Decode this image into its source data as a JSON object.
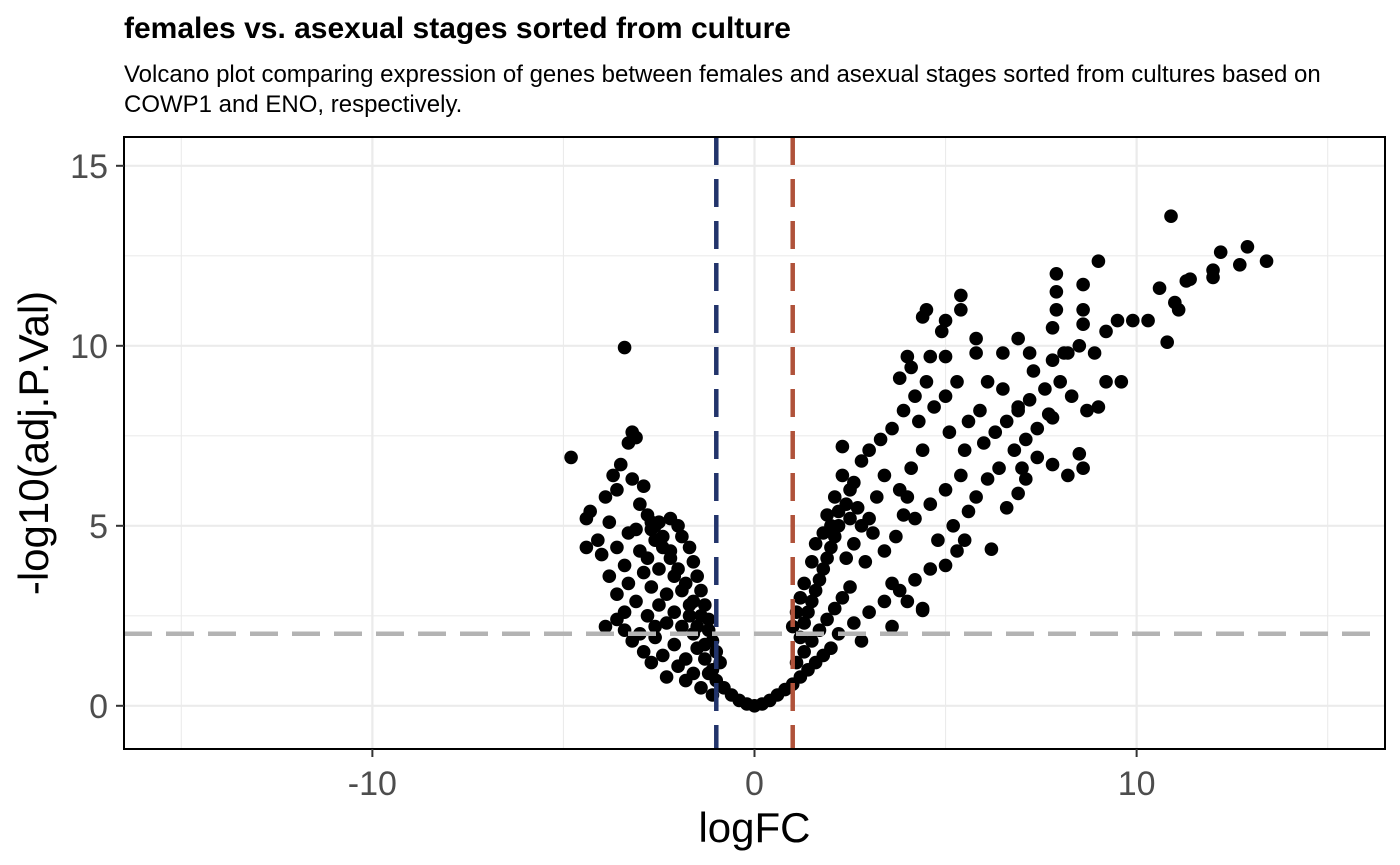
{
  "chart_data": {
    "type": "scatter",
    "title": "females vs. asexual stages sorted from culture",
    "subtitle": "Volcano plot comparing expression of genes between females and asexual stages sorted from cultures based on COWP1 and ENO, respectively.",
    "xlabel": "logFC",
    "ylabel": "-log10(adj.P.Val)",
    "xlim": [
      -16.5,
      16.5
    ],
    "ylim": [
      -1.2,
      15.8
    ],
    "x_ticks": [
      -10,
      0,
      10
    ],
    "x_tick_labels": [
      "-10",
      "0",
      "10"
    ],
    "y_ticks": [
      0,
      5,
      10,
      15
    ],
    "y_tick_labels": [
      "0",
      "5",
      "10",
      "15"
    ],
    "grid": true,
    "reference_lines": [
      {
        "orientation": "vertical",
        "value": -1,
        "color": "#22346b",
        "style": "dashed"
      },
      {
        "orientation": "vertical",
        "value": 1,
        "color": "#b0523a",
        "style": "dashed"
      },
      {
        "orientation": "horizontal",
        "value": 2,
        "color": "#b3b3b3",
        "style": "dashed"
      }
    ],
    "point_color": "#000000",
    "points": [
      [
        -4.8,
        6.9
      ],
      [
        -3.4,
        9.95
      ],
      [
        -3.2,
        7.6
      ],
      [
        -3.1,
        7.45
      ],
      [
        -3.3,
        7.3
      ],
      [
        -3.5,
        6.7
      ],
      [
        -3.7,
        6.4
      ],
      [
        -3.2,
        6.3
      ],
      [
        -3.6,
        6.0
      ],
      [
        -2.9,
        6.1
      ],
      [
        -3.0,
        5.6
      ],
      [
        -3.9,
        5.8
      ],
      [
        -4.3,
        5.4
      ],
      [
        -4.4,
        5.2
      ],
      [
        -3.8,
        5.1
      ],
      [
        -2.7,
        5.1
      ],
      [
        -3.1,
        4.9
      ],
      [
        -4.1,
        4.6
      ],
      [
        -4.4,
        4.4
      ],
      [
        -2.7,
        4.9
      ],
      [
        -3.3,
        4.8
      ],
      [
        -4.0,
        4.2
      ],
      [
        -3.6,
        4.4
      ],
      [
        -2.6,
        4.6
      ],
      [
        -3.0,
        4.3
      ],
      [
        -2.8,
        4.1
      ],
      [
        -2.4,
        4.4
      ],
      [
        -3.4,
        3.9
      ],
      [
        -3.8,
        3.6
      ],
      [
        -2.2,
        4.1
      ],
      [
        -2.9,
        3.7
      ],
      [
        -3.3,
        3.4
      ],
      [
        -2.5,
        3.8
      ],
      [
        -2.1,
        3.6
      ],
      [
        -3.6,
        3.1
      ],
      [
        -2.7,
        3.3
      ],
      [
        -2.3,
        3.1
      ],
      [
        -3.1,
        2.9
      ],
      [
        -1.9,
        3.2
      ],
      [
        -2.5,
        2.8
      ],
      [
        -3.4,
        2.6
      ],
      [
        -3.6,
        2.4
      ],
      [
        -2.1,
        2.6
      ],
      [
        -2.8,
        2.5
      ],
      [
        -1.7,
        2.8
      ],
      [
        -2.3,
        2.3
      ],
      [
        -3.2,
        1.8
      ],
      [
        -1.9,
        2.2
      ],
      [
        -2.6,
        1.9
      ],
      [
        -1.6,
        2.0
      ],
      [
        -2.1,
        1.7
      ],
      [
        -2.9,
        1.5
      ],
      [
        -1.5,
        1.6
      ],
      [
        -2.4,
        1.4
      ],
      [
        -1.8,
        1.3
      ],
      [
        -2.7,
        1.2
      ],
      [
        -1.3,
        1.3
      ],
      [
        -2.0,
        1.1
      ],
      [
        -1.6,
        0.9
      ],
      [
        -2.3,
        0.8
      ],
      [
        -1.2,
        0.9
      ],
      [
        -1.8,
        0.7
      ],
      [
        -1.0,
        0.7
      ],
      [
        -1.4,
        0.5
      ],
      [
        -0.8,
        0.5
      ],
      [
        -1.1,
        0.3
      ],
      [
        -0.6,
        0.3
      ],
      [
        -0.4,
        0.15
      ],
      [
        -0.2,
        0.05
      ],
      [
        0.0,
        0.0
      ],
      [
        0.2,
        0.05
      ],
      [
        0.4,
        0.15
      ],
      [
        0.6,
        0.3
      ],
      [
        0.8,
        0.45
      ],
      [
        1.0,
        0.6
      ],
      [
        1.2,
        0.8
      ],
      [
        1.4,
        1.0
      ],
      [
        1.6,
        1.2
      ],
      [
        1.8,
        1.4
      ],
      [
        2.0,
        1.6
      ],
      [
        1.1,
        1.2
      ],
      [
        1.3,
        1.5
      ],
      [
        1.5,
        1.8
      ],
      [
        1.7,
        2.1
      ],
      [
        1.9,
        2.4
      ],
      [
        2.1,
        2.7
      ],
      [
        2.3,
        3.0
      ],
      [
        2.5,
        3.3
      ],
      [
        2.2,
        2.0
      ],
      [
        2.6,
        2.3
      ],
      [
        3.0,
        2.6
      ],
      [
        3.4,
        2.9
      ],
      [
        3.8,
        3.2
      ],
      [
        4.2,
        3.5
      ],
      [
        4.6,
        3.8
      ],
      [
        4.4,
        2.7
      ],
      [
        3.6,
        2.2
      ],
      [
        2.8,
        1.8
      ],
      [
        1.4,
        2.6
      ],
      [
        1.6,
        3.2
      ],
      [
        1.8,
        3.8
      ],
      [
        2.0,
        4.4
      ],
      [
        2.2,
        5.0
      ],
      [
        2.4,
        5.6
      ],
      [
        2.6,
        6.2
      ],
      [
        2.8,
        6.8
      ],
      [
        2.3,
        7.2
      ],
      [
        3.0,
        7.1
      ],
      [
        3.3,
        7.4
      ],
      [
        3.6,
        7.7
      ],
      [
        3.0,
        5.2
      ],
      [
        3.2,
        5.8
      ],
      [
        3.4,
        6.4
      ],
      [
        3.8,
        6.0
      ],
      [
        4.1,
        6.6
      ],
      [
        4.4,
        7.1
      ],
      [
        4.2,
        5.2
      ],
      [
        4.6,
        5.6
      ],
      [
        5.0,
        6.0
      ],
      [
        5.4,
        6.4
      ],
      [
        4.8,
        4.6
      ],
      [
        5.2,
        5.0
      ],
      [
        5.6,
        5.4
      ],
      [
        5.3,
        4.3
      ],
      [
        5.0,
        3.9
      ],
      [
        5.5,
        4.6
      ],
      [
        6.2,
        4.35
      ],
      [
        5.8,
        5.8
      ],
      [
        6.1,
        6.3
      ],
      [
        6.4,
        6.6
      ],
      [
        3.9,
        8.2
      ],
      [
        4.2,
        8.6
      ],
      [
        4.5,
        9.0
      ],
      [
        4.1,
        9.4
      ],
      [
        3.8,
        9.1
      ],
      [
        4.3,
        7.9
      ],
      [
        4.7,
        8.3
      ],
      [
        5.0,
        8.6
      ],
      [
        5.3,
        9.0
      ],
      [
        5.1,
        7.6
      ],
      [
        5.6,
        7.9
      ],
      [
        5.9,
        8.2
      ],
      [
        5.5,
        7.1
      ],
      [
        6.0,
        7.3
      ],
      [
        6.3,
        7.6
      ],
      [
        6.6,
        7.9
      ],
      [
        6.9,
        8.3
      ],
      [
        7.2,
        8.5
      ],
      [
        6.8,
        7.1
      ],
      [
        7.1,
        7.4
      ],
      [
        7.4,
        7.7
      ],
      [
        7.7,
        8.1
      ],
      [
        7.0,
        6.6
      ],
      [
        7.4,
        6.9
      ],
      [
        7.8,
        6.7
      ],
      [
        8.2,
        6.4
      ],
      [
        8.6,
        6.6
      ],
      [
        8.5,
        7.0
      ],
      [
        7.6,
        8.8
      ],
      [
        8.0,
        9.0
      ],
      [
        8.3,
        8.6
      ],
      [
        8.7,
        8.2
      ],
      [
        9.0,
        8.3
      ],
      [
        7.3,
        9.3
      ],
      [
        7.8,
        9.6
      ],
      [
        8.2,
        9.8
      ],
      [
        9.2,
        9.0
      ],
      [
        8.9,
        9.8
      ],
      [
        9.2,
        10.4
      ],
      [
        9.5,
        10.7
      ],
      [
        9.9,
        10.7
      ],
      [
        10.3,
        10.7
      ],
      [
        10.8,
        10.1
      ],
      [
        10.6,
        11.6
      ],
      [
        11.0,
        11.2
      ],
      [
        11.1,
        11.0
      ],
      [
        11.3,
        11.8
      ],
      [
        11.4,
        11.85
      ],
      [
        12.0,
        11.9
      ],
      [
        12.0,
        12.1
      ],
      [
        12.2,
        12.6
      ],
      [
        12.7,
        12.25
      ],
      [
        12.9,
        12.75
      ],
      [
        13.4,
        12.35
      ],
      [
        10.9,
        13.6
      ],
      [
        9.0,
        12.35
      ],
      [
        7.9,
        12.0
      ],
      [
        8.6,
        11.7
      ],
      [
        7.9,
        11.5
      ],
      [
        7.9,
        11.0
      ],
      [
        7.8,
        10.5
      ],
      [
        8.6,
        10.6
      ],
      [
        8.6,
        11.0
      ],
      [
        5.4,
        11.4
      ],
      [
        4.5,
        11.0
      ],
      [
        5.4,
        11.0
      ],
      [
        4.4,
        10.8
      ],
      [
        5.0,
        10.7
      ],
      [
        4.9,
        10.4
      ],
      [
        5.8,
        10.2
      ],
      [
        6.9,
        10.2
      ],
      [
        5.0,
        9.7
      ],
      [
        5.8,
        9.8
      ],
      [
        6.5,
        9.8
      ],
      [
        7.2,
        9.8
      ],
      [
        4.0,
        9.7
      ],
      [
        4.6,
        9.7
      ],
      [
        8.5,
        10.0
      ],
      [
        8.1,
        9.8
      ],
      [
        9.6,
        9.0
      ],
      [
        6.1,
        9.0
      ],
      [
        6.5,
        8.8
      ],
      [
        6.9,
        8.2
      ],
      [
        7.8,
        8.0
      ],
      [
        6.6,
        5.5
      ],
      [
        6.9,
        5.9
      ],
      [
        7.1,
        6.3
      ],
      [
        4.4,
        2.65
      ],
      [
        4.0,
        2.9
      ],
      [
        3.6,
        3.4
      ],
      [
        1.9,
        5.3
      ],
      [
        2.1,
        5.8
      ],
      [
        2.3,
        6.4
      ],
      [
        2.5,
        6.0
      ],
      [
        2.7,
        5.5
      ],
      [
        3.1,
        4.8
      ],
      [
        3.4,
        4.3
      ],
      [
        3.7,
        4.7
      ],
      [
        3.9,
        5.3
      ],
      [
        4.0,
        5.8
      ],
      [
        1.2,
        1.9
      ],
      [
        1.3,
        2.3
      ],
      [
        1.5,
        2.9
      ],
      [
        1.7,
        3.5
      ],
      [
        1.9,
        4.1
      ],
      [
        2.1,
        4.7
      ],
      [
        2.4,
        4.1
      ],
      [
        2.6,
        4.5
      ],
      [
        2.8,
        5.0
      ],
      [
        2.9,
        4.0
      ],
      [
        1.0,
        2.2
      ],
      [
        1.1,
        2.6
      ],
      [
        1.2,
        3.0
      ],
      [
        1.3,
        3.4
      ],
      [
        1.5,
        4.0
      ],
      [
        1.6,
        4.5
      ],
      [
        1.8,
        4.8
      ],
      [
        2.0,
        5.0
      ],
      [
        2.2,
        5.4
      ],
      [
        2.5,
        5.2
      ],
      [
        -1.2,
        2.4
      ],
      [
        -1.3,
        2.8
      ],
      [
        -1.4,
        3.2
      ],
      [
        -1.5,
        3.6
      ],
      [
        -1.6,
        4.0
      ],
      [
        -1.7,
        4.4
      ],
      [
        -1.9,
        4.7
      ],
      [
        -2.0,
        5.0
      ],
      [
        -2.2,
        5.2
      ],
      [
        -2.5,
        5.1
      ],
      [
        -1.1,
        1.8
      ],
      [
        -1.2,
        2.1
      ],
      [
        -1.4,
        2.5
      ],
      [
        -1.6,
        2.9
      ],
      [
        -1.8,
        3.4
      ],
      [
        -2.0,
        3.8
      ],
      [
        -2.2,
        4.3
      ],
      [
        -2.4,
        4.7
      ],
      [
        -2.6,
        5.0
      ],
      [
        -2.8,
        5.3
      ],
      [
        -0.9,
        1.2
      ],
      [
        -1.0,
        1.5
      ],
      [
        -1.1,
        1.0
      ],
      [
        -1.3,
        1.7
      ],
      [
        -1.5,
        2.2
      ],
      [
        -1.7,
        2.5
      ],
      [
        -2.6,
        2.2
      ],
      [
        -3.0,
        2.0
      ],
      [
        -3.4,
        2.1
      ],
      [
        -3.9,
        2.2
      ]
    ]
  }
}
